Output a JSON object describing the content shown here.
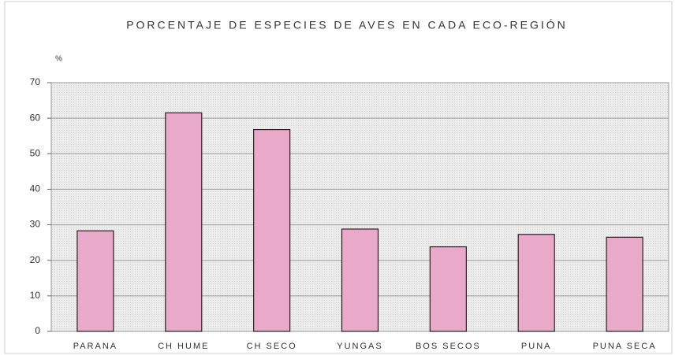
{
  "chart_data": {
    "type": "bar",
    "title": "PORCENTAJE DE ESPECIES DE AVES EN CADA ECO-REGIÓN",
    "y_label": "%",
    "categories": [
      "PARANA",
      "CH HUME",
      "CH SECO",
      "YUNGAS",
      "BOS SECOS",
      "PUNA",
      "PUNA SECA"
    ],
    "values": [
      28.3,
      61.5,
      56.8,
      28.8,
      23.8,
      27.3,
      26.5
    ],
    "color": "#e9a9c9",
    "ylim": [
      0,
      70
    ],
    "yticks": [
      0,
      10,
      20,
      30,
      40,
      50,
      60,
      70
    ],
    "grid": true
  }
}
